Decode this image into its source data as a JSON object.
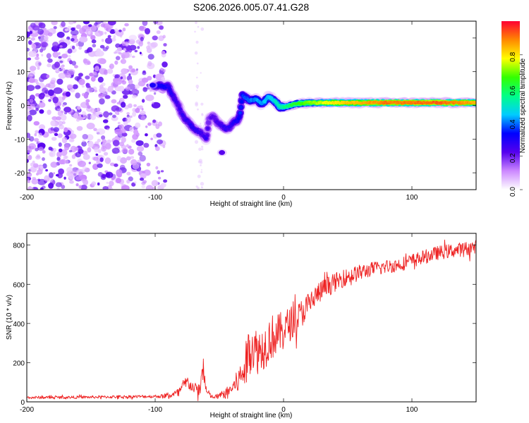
{
  "title": "S206.2026.005.07.41.G28",
  "chart_data": [
    {
      "type": "heatmap",
      "title": "S206.2026.005.07.41.G28",
      "xlabel": "Height of straight line (km)",
      "ylabel": "Frequency (Hz)",
      "xlim": [
        -200,
        150
      ],
      "ylim": [
        -25,
        25
      ],
      "xticks": [
        -200,
        -100,
        0,
        100
      ],
      "yticks": [
        -20,
        -10,
        0,
        10,
        20
      ],
      "colorbar": {
        "label": "Normalized spectral amplitude",
        "range": [
          0,
          1
        ],
        "ticks": [
          "0.0",
          "0.2",
          "0.4",
          "0.6",
          "0.8"
        ],
        "colors": [
          "#ffffff",
          "#cc88ff",
          "#5500ee",
          "#0000ff",
          "#00ccff",
          "#00ff88",
          "#33ff00",
          "#ffff00",
          "#ff8800",
          "#ff0033"
        ]
      },
      "ridge": {
        "x": [
          -101,
          -97,
          -93,
          -90,
          -88,
          -85,
          -82,
          -80,
          -77,
          -74,
          -71,
          -68,
          -65,
          -62,
          -60,
          -58,
          -55,
          -52,
          -48,
          -45,
          -42,
          -39,
          -36,
          -34,
          -32,
          -30,
          -27,
          -24,
          -21,
          -18,
          -15,
          -12,
          -9,
          -6,
          -3,
          0,
          5,
          10,
          20,
          40,
          60,
          80,
          100,
          120,
          150
        ],
        "y": [
          5.5,
          6.0,
          5.5,
          5.8,
          4.0,
          2.0,
          0.0,
          -2.0,
          -4.0,
          -5.0,
          -6.5,
          -7.5,
          -8.0,
          -9.0,
          -10.0,
          -4.0,
          -3.0,
          -5.0,
          -6.0,
          -7.0,
          -6.5,
          -5.0,
          -4.5,
          -3.0,
          3.0,
          2.5,
          1.5,
          1.5,
          2.0,
          0.5,
          1.0,
          2.5,
          2.0,
          1.0,
          -0.5,
          -0.5,
          0.0,
          0.5,
          0.8,
          0.8,
          0.8,
          0.8,
          0.8,
          0.8,
          0.8
        ],
        "amplitude": [
          0.28,
          0.3,
          0.32,
          0.3,
          0.28,
          0.26,
          0.25,
          0.25,
          0.26,
          0.27,
          0.27,
          0.26,
          0.26,
          0.25,
          0.26,
          0.2,
          0.22,
          0.24,
          0.26,
          0.27,
          0.27,
          0.28,
          0.3,
          0.34,
          0.36,
          0.37,
          0.38,
          0.4,
          0.42,
          0.42,
          0.44,
          0.45,
          0.46,
          0.5,
          0.52,
          0.55,
          0.6,
          0.65,
          0.7,
          0.8,
          0.85,
          0.9,
          0.9,
          0.92,
          0.85
        ]
      },
      "noise": {
        "region_x": [
          -200,
          -100
        ],
        "color": "purple speckle",
        "amplitude": [
          0.05,
          0.2
        ]
      },
      "extra_blobs": [
        {
          "x": -48,
          "y": -14,
          "amplitude": 0.22
        },
        {
          "x": -102,
          "y": 6,
          "amplitude": 0.3
        }
      ]
    },
    {
      "type": "line",
      "xlabel": "Height of straight line (km)",
      "ylabel": "SNR (10 * v/v)",
      "xlim": [
        -200,
        150
      ],
      "ylim": [
        0,
        860
      ],
      "xticks": [
        -200,
        -100,
        0,
        100
      ],
      "yticks": [
        0,
        200,
        400,
        600,
        800
      ],
      "series": [
        {
          "name": "SNR",
          "color": "#ee2222",
          "envelope": {
            "x": [
              -200,
              -150,
              -100,
              -90,
              -82,
              -78,
              -75,
              -70,
              -65,
              -63,
              -60,
              -55,
              -50,
              -45,
              -40,
              -35,
              -30,
              -28,
              -25,
              -23,
              -20,
              -15,
              -10,
              -5,
              0,
              5,
              10,
              15,
              20,
              25,
              30,
              40,
              50,
              60,
              70,
              80,
              90,
              100,
              110,
              120,
              130,
              140,
              150
            ],
            "mean": [
              22,
              24,
              28,
              30,
              45,
              80,
              100,
              70,
              60,
              180,
              50,
              22,
              30,
              45,
              70,
              110,
              170,
              230,
              300,
              270,
              260,
              280,
              330,
              340,
              370,
              400,
              420,
              460,
              500,
              540,
              570,
              610,
              640,
              660,
              680,
              690,
              700,
              720,
              740,
              760,
              770,
              780,
              790
            ],
            "amp": [
              12,
              12,
              14,
              20,
              40,
              60,
              60,
              45,
              60,
              120,
              40,
              12,
              30,
              40,
              60,
              110,
              180,
              220,
              220,
              200,
              200,
              190,
              200,
              180,
              160,
              150,
              130,
              120,
              110,
              100,
              90,
              80,
              70,
              70,
              60,
              60,
              60,
              60,
              60,
              60,
              60,
              60,
              60
            ]
          }
        }
      ]
    }
  ]
}
